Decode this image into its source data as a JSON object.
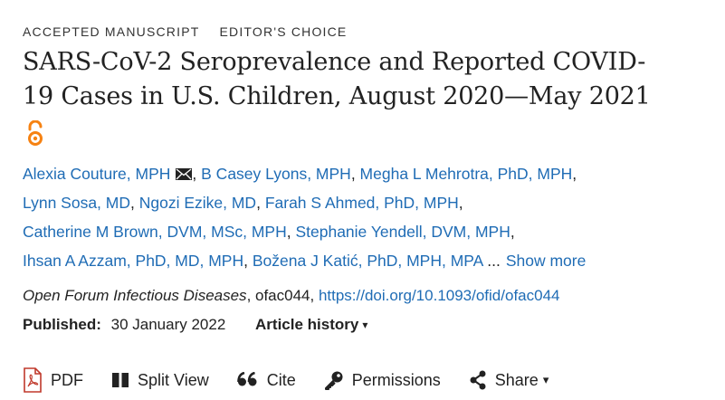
{
  "labels": {
    "accepted": "ACCEPTED MANUSCRIPT",
    "editors_choice": "EDITOR'S CHOICE"
  },
  "title": {
    "line1": "SARS-CoV-2 Seroprevalence and Reported COVID-",
    "line2": "19 Cases in U.S. Children, August 2020—May 2021"
  },
  "authors": [
    [
      "Alexia Couture, MPH",
      "B Casey Lyons, MPH",
      "Megha L Mehrotra, PhD, MPH"
    ],
    [
      "Lynn Sosa, MD",
      "Ngozi Ezike, MD",
      "Farah S Ahmed, PhD, MPH"
    ],
    [
      "Catherine M Brown, DVM, MSc, MPH",
      "Stephanie Yendell, DVM, MPH"
    ],
    [
      "Ihsan A Azzam, PhD, MD, MPH",
      "Božena J Katić, PhD, MPH, MPA"
    ]
  ],
  "author_sep": ", ",
  "author_line_end": ",",
  "ellipsis": " ...",
  "show_more": "Show more",
  "citation": {
    "journal": "Open Forum Infectious Diseases",
    "id": ", ofac044, ",
    "doi": "https://doi.org/10.1093/ofid/ofac044"
  },
  "published": {
    "label": "Published:",
    "date": "30 January 2022",
    "history": "Article history",
    "history_caret": "▾"
  },
  "toolbar": {
    "pdf": "PDF",
    "split_view": "Split View",
    "cite": "Cite",
    "permissions": "Permissions",
    "share": "Share",
    "share_caret": "▾"
  },
  "colors": {
    "link": "#1f6cb5",
    "text": "#222222",
    "open_access": "#f68212",
    "pdf_icon": "#c0392b"
  },
  "icons": {
    "open_access": "open-access-icon",
    "mail": "mail-icon",
    "pdf": "pdf-icon",
    "split_view": "split-view-icon",
    "cite": "quote-icon",
    "permissions": "key-icon",
    "share": "share-icon"
  }
}
